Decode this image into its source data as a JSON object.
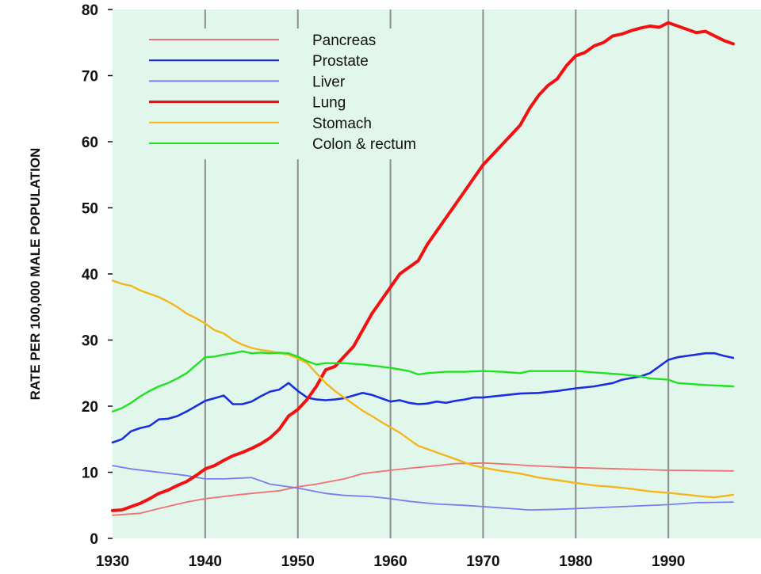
{
  "colors": {
    "plot_background": "#e2f7ec",
    "gridline": "#8c8c8c"
  },
  "chart_data": {
    "type": "line",
    "title": "",
    "xlabel": "",
    "ylabel": "RATE PER 100,000 MALE POPULATION",
    "xlim": [
      1930,
      2000
    ],
    "ylim": [
      0,
      80
    ],
    "xticks": [
      "1930",
      "1940",
      "1950",
      "1960",
      "1970",
      "1980",
      "1990"
    ],
    "yticks": [
      "0",
      "10",
      "20",
      "30",
      "40",
      "50",
      "60",
      "70",
      "80"
    ],
    "grid": "vertical",
    "legend_position": "top-left",
    "series": [
      {
        "name": "Pancreas",
        "color": "#f07070",
        "width": 1.8,
        "points": [
          [
            1930,
            3.5
          ],
          [
            1933,
            3.8
          ],
          [
            1935,
            4.5
          ],
          [
            1938,
            5.5
          ],
          [
            1940,
            6.0
          ],
          [
            1943,
            6.5
          ],
          [
            1945,
            6.8
          ],
          [
            1948,
            7.2
          ],
          [
            1950,
            7.8
          ],
          [
            1952,
            8.2
          ],
          [
            1955,
            9.0
          ],
          [
            1957,
            9.8
          ],
          [
            1960,
            10.3
          ],
          [
            1962,
            10.6
          ],
          [
            1965,
            11.0
          ],
          [
            1967,
            11.3
          ],
          [
            1970,
            11.4
          ],
          [
            1973,
            11.2
          ],
          [
            1975,
            11.0
          ],
          [
            1980,
            10.7
          ],
          [
            1985,
            10.5
          ],
          [
            1990,
            10.3
          ],
          [
            1997,
            10.2
          ]
        ]
      },
      {
        "name": "Prostate",
        "color": "#1a2ee0",
        "width": 2.6,
        "points": [
          [
            1930,
            14.5
          ],
          [
            1931,
            15.0
          ],
          [
            1932,
            16.2
          ],
          [
            1933,
            16.7
          ],
          [
            1934,
            17.0
          ],
          [
            1935,
            18.0
          ],
          [
            1936,
            18.1
          ],
          [
            1937,
            18.5
          ],
          [
            1938,
            19.2
          ],
          [
            1939,
            20.0
          ],
          [
            1940,
            20.8
          ],
          [
            1941,
            21.2
          ],
          [
            1942,
            21.6
          ],
          [
            1943,
            20.3
          ],
          [
            1944,
            20.3
          ],
          [
            1945,
            20.7
          ],
          [
            1946,
            21.5
          ],
          [
            1947,
            22.2
          ],
          [
            1948,
            22.5
          ],
          [
            1949,
            23.5
          ],
          [
            1950,
            22.3
          ],
          [
            1951,
            21.3
          ],
          [
            1952,
            21.0
          ],
          [
            1953,
            20.9
          ],
          [
            1954,
            21.0
          ],
          [
            1955,
            21.2
          ],
          [
            1956,
            21.6
          ],
          [
            1957,
            22.0
          ],
          [
            1958,
            21.7
          ],
          [
            1959,
            21.2
          ],
          [
            1960,
            20.7
          ],
          [
            1961,
            20.9
          ],
          [
            1962,
            20.5
          ],
          [
            1963,
            20.3
          ],
          [
            1964,
            20.4
          ],
          [
            1965,
            20.7
          ],
          [
            1966,
            20.5
          ],
          [
            1967,
            20.8
          ],
          [
            1968,
            21.0
          ],
          [
            1969,
            21.3
          ],
          [
            1970,
            21.3
          ],
          [
            1972,
            21.6
          ],
          [
            1974,
            21.9
          ],
          [
            1976,
            22.0
          ],
          [
            1978,
            22.3
          ],
          [
            1980,
            22.7
          ],
          [
            1982,
            23.0
          ],
          [
            1984,
            23.5
          ],
          [
            1985,
            24.0
          ],
          [
            1987,
            24.5
          ],
          [
            1988,
            25.0
          ],
          [
            1989,
            26.0
          ],
          [
            1990,
            27.0
          ],
          [
            1991,
            27.4
          ],
          [
            1992,
            27.6
          ],
          [
            1993,
            27.8
          ],
          [
            1994,
            28.0
          ],
          [
            1995,
            28.0
          ],
          [
            1996,
            27.6
          ],
          [
            1997,
            27.3
          ]
        ]
      },
      {
        "name": "Liver",
        "color": "#7b7bf0",
        "width": 1.8,
        "points": [
          [
            1930,
            11.0
          ],
          [
            1932,
            10.5
          ],
          [
            1935,
            10.0
          ],
          [
            1938,
            9.5
          ],
          [
            1940,
            9.0
          ],
          [
            1942,
            9.0
          ],
          [
            1945,
            9.2
          ],
          [
            1947,
            8.2
          ],
          [
            1950,
            7.6
          ],
          [
            1953,
            6.8
          ],
          [
            1955,
            6.5
          ],
          [
            1958,
            6.3
          ],
          [
            1960,
            6.0
          ],
          [
            1962,
            5.6
          ],
          [
            1965,
            5.2
          ],
          [
            1968,
            5.0
          ],
          [
            1970,
            4.8
          ],
          [
            1973,
            4.5
          ],
          [
            1975,
            4.3
          ],
          [
            1978,
            4.4
          ],
          [
            1980,
            4.5
          ],
          [
            1985,
            4.8
          ],
          [
            1990,
            5.1
          ],
          [
            1993,
            5.4
          ],
          [
            1997,
            5.5
          ]
        ]
      },
      {
        "name": "Lung",
        "color": "#f21010",
        "width": 4.0,
        "points": [
          [
            1930,
            4.2
          ],
          [
            1931,
            4.3
          ],
          [
            1932,
            4.8
          ],
          [
            1933,
            5.3
          ],
          [
            1934,
            6.0
          ],
          [
            1935,
            6.8
          ],
          [
            1936,
            7.3
          ],
          [
            1937,
            8.0
          ],
          [
            1938,
            8.6
          ],
          [
            1939,
            9.5
          ],
          [
            1940,
            10.5
          ],
          [
            1941,
            11.0
          ],
          [
            1942,
            11.8
          ],
          [
            1943,
            12.5
          ],
          [
            1944,
            13.0
          ],
          [
            1945,
            13.6
          ],
          [
            1946,
            14.3
          ],
          [
            1947,
            15.2
          ],
          [
            1948,
            16.5
          ],
          [
            1949,
            18.5
          ],
          [
            1950,
            19.5
          ],
          [
            1951,
            21.0
          ],
          [
            1952,
            23.0
          ],
          [
            1953,
            25.5
          ],
          [
            1954,
            26.0
          ],
          [
            1955,
            27.5
          ],
          [
            1956,
            29.0
          ],
          [
            1957,
            31.5
          ],
          [
            1958,
            34.0
          ],
          [
            1959,
            36.0
          ],
          [
            1960,
            38.0
          ],
          [
            1961,
            40.0
          ],
          [
            1962,
            41.0
          ],
          [
            1963,
            42.0
          ],
          [
            1964,
            44.5
          ],
          [
            1965,
            46.5
          ],
          [
            1966,
            48.5
          ],
          [
            1967,
            50.5
          ],
          [
            1968,
            52.5
          ],
          [
            1969,
            54.5
          ],
          [
            1970,
            56.5
          ],
          [
            1971,
            58.0
          ],
          [
            1972,
            59.5
          ],
          [
            1973,
            61.0
          ],
          [
            1974,
            62.5
          ],
          [
            1975,
            65.0
          ],
          [
            1976,
            67.0
          ],
          [
            1977,
            68.5
          ],
          [
            1978,
            69.5
          ],
          [
            1979,
            71.5
          ],
          [
            1980,
            73.0
          ],
          [
            1981,
            73.5
          ],
          [
            1982,
            74.5
          ],
          [
            1983,
            75.0
          ],
          [
            1984,
            76.0
          ],
          [
            1985,
            76.3
          ],
          [
            1986,
            76.8
          ],
          [
            1987,
            77.2
          ],
          [
            1988,
            77.5
          ],
          [
            1989,
            77.3
          ],
          [
            1990,
            78.0
          ],
          [
            1991,
            77.5
          ],
          [
            1992,
            77.0
          ],
          [
            1993,
            76.5
          ],
          [
            1994,
            76.7
          ],
          [
            1995,
            76.0
          ],
          [
            1996,
            75.3
          ],
          [
            1997,
            74.8
          ]
        ]
      },
      {
        "name": "Stomach",
        "color": "#f5b51c",
        "width": 2.4,
        "points": [
          [
            1930,
            39.0
          ],
          [
            1931,
            38.5
          ],
          [
            1932,
            38.2
          ],
          [
            1933,
            37.5
          ],
          [
            1934,
            37.0
          ],
          [
            1935,
            36.5
          ],
          [
            1936,
            35.8
          ],
          [
            1937,
            35.0
          ],
          [
            1938,
            34.0
          ],
          [
            1939,
            33.3
          ],
          [
            1940,
            32.5
          ],
          [
            1941,
            31.5
          ],
          [
            1942,
            31.0
          ],
          [
            1943,
            30.0
          ],
          [
            1944,
            29.3
          ],
          [
            1945,
            28.8
          ],
          [
            1946,
            28.5
          ],
          [
            1947,
            28.3
          ],
          [
            1948,
            28.0
          ],
          [
            1949,
            27.8
          ],
          [
            1950,
            27.2
          ],
          [
            1951,
            26.5
          ],
          [
            1952,
            25.0
          ],
          [
            1953,
            23.5
          ],
          [
            1954,
            22.3
          ],
          [
            1955,
            21.3
          ],
          [
            1956,
            20.3
          ],
          [
            1957,
            19.3
          ],
          [
            1958,
            18.5
          ],
          [
            1959,
            17.6
          ],
          [
            1960,
            16.8
          ],
          [
            1961,
            16.0
          ],
          [
            1962,
            15.0
          ],
          [
            1963,
            14.0
          ],
          [
            1964,
            13.5
          ],
          [
            1965,
            13.0
          ],
          [
            1966,
            12.5
          ],
          [
            1967,
            12.0
          ],
          [
            1968,
            11.5
          ],
          [
            1969,
            11.0
          ],
          [
            1970,
            10.7
          ],
          [
            1972,
            10.2
          ],
          [
            1974,
            9.8
          ],
          [
            1976,
            9.2
          ],
          [
            1978,
            8.8
          ],
          [
            1980,
            8.4
          ],
          [
            1982,
            8.0
          ],
          [
            1984,
            7.8
          ],
          [
            1986,
            7.5
          ],
          [
            1988,
            7.1
          ],
          [
            1990,
            6.9
          ],
          [
            1992,
            6.6
          ],
          [
            1994,
            6.3
          ],
          [
            1995,
            6.2
          ],
          [
            1997,
            6.6
          ]
        ]
      },
      {
        "name": "Colon & rectum",
        "color": "#22e022",
        "width": 2.4,
        "points": [
          [
            1930,
            19.2
          ],
          [
            1931,
            19.7
          ],
          [
            1932,
            20.5
          ],
          [
            1933,
            21.5
          ],
          [
            1934,
            22.3
          ],
          [
            1935,
            23.0
          ],
          [
            1936,
            23.5
          ],
          [
            1937,
            24.2
          ],
          [
            1938,
            25.0
          ],
          [
            1939,
            26.2
          ],
          [
            1940,
            27.4
          ],
          [
            1941,
            27.5
          ],
          [
            1942,
            27.8
          ],
          [
            1943,
            28.0
          ],
          [
            1944,
            28.3
          ],
          [
            1945,
            28.0
          ],
          [
            1946,
            28.1
          ],
          [
            1947,
            28.0
          ],
          [
            1948,
            28.1
          ],
          [
            1949,
            28.0
          ],
          [
            1950,
            27.5
          ],
          [
            1951,
            26.8
          ],
          [
            1952,
            26.3
          ],
          [
            1953,
            26.5
          ],
          [
            1955,
            26.5
          ],
          [
            1957,
            26.3
          ],
          [
            1960,
            25.8
          ],
          [
            1962,
            25.3
          ],
          [
            1963,
            24.8
          ],
          [
            1964,
            25.0
          ],
          [
            1966,
            25.2
          ],
          [
            1968,
            25.2
          ],
          [
            1970,
            25.3
          ],
          [
            1972,
            25.2
          ],
          [
            1974,
            25.0
          ],
          [
            1975,
            25.3
          ],
          [
            1977,
            25.3
          ],
          [
            1980,
            25.3
          ],
          [
            1982,
            25.1
          ],
          [
            1985,
            24.8
          ],
          [
            1987,
            24.5
          ],
          [
            1988,
            24.2
          ],
          [
            1990,
            24.0
          ],
          [
            1991,
            23.5
          ],
          [
            1994,
            23.2
          ],
          [
            1997,
            23.0
          ]
        ]
      }
    ]
  }
}
